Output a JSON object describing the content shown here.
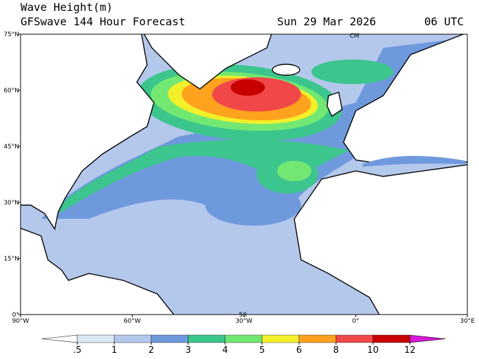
{
  "header": {
    "title": "Wave Height(m)",
    "subtitle": "GFSwave 144 Hour Forecast",
    "date": "Sun 29 Mar 2026",
    "time": "06 UTC"
  },
  "map": {
    "lonlim": [
      -90,
      30
    ],
    "latlim": [
      0,
      75
    ],
    "lat_ticks": [
      {
        "value": 0,
        "label": "0°"
      },
      {
        "value": 15,
        "label": "15°N"
      },
      {
        "value": 30,
        "label": "30°N"
      },
      {
        "value": 45,
        "label": "45°N"
      },
      {
        "value": 60,
        "label": "60°N"
      },
      {
        "value": 75,
        "label": "75°N"
      }
    ],
    "lon_ticks": [
      {
        "value": -90,
        "label": "90°W"
      },
      {
        "value": -60,
        "label": "60°W"
      },
      {
        "value": -30,
        "label": "30°W"
      },
      {
        "value": 0,
        "label": "0°"
      },
      {
        "value": 30,
        "label": "30°E"
      }
    ],
    "annotations": [
      "CM",
      "50"
    ]
  },
  "colorbar": {
    "levels": [
      {
        "value": 0.5,
        "label": ".5"
      },
      1,
      2,
      3,
      4,
      5,
      6,
      8,
      10,
      12
    ],
    "colors": [
      "#ffffff",
      "#dce8f6",
      "#b4c8ec",
      "#6f99dd",
      "#3cc58c",
      "#72e872",
      "#f2f02a",
      "#ffa21e",
      "#f04848",
      "#c80000",
      "#d81ad8"
    ]
  }
}
